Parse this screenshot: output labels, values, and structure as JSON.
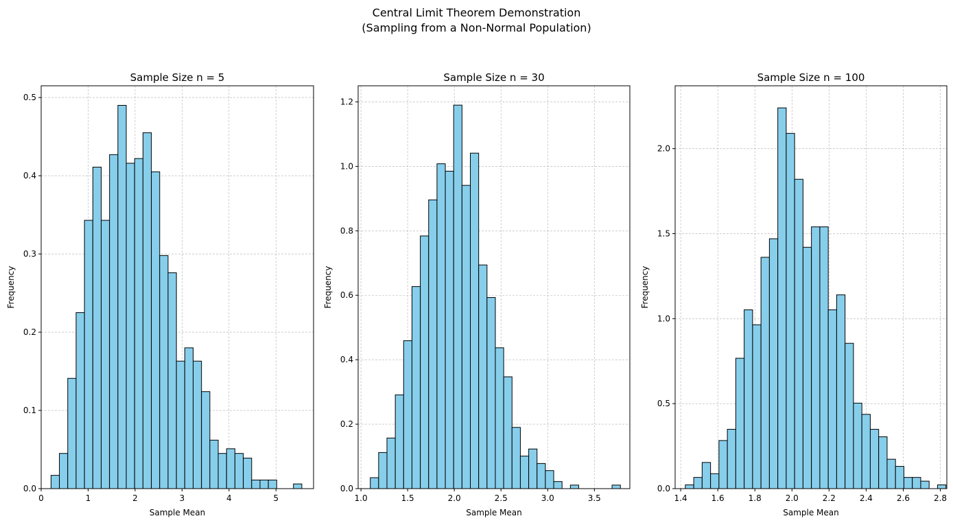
{
  "figure": {
    "title_line1": "Central Limit Theorem Demonstration",
    "title_line2": "(Sampling from a Non-Normal Population)"
  },
  "colors": {
    "bar_fill": "#87CEEB",
    "bar_edge": "#000000",
    "grid": "#b0b0b0"
  },
  "chart_data": [
    {
      "type": "bar",
      "title": "Sample Size n = 5",
      "xlabel": "Sample Mean",
      "ylabel": "Frequency",
      "grid": true,
      "xlim": [
        0.0,
        5.8
      ],
      "ylim": [
        0,
        0.515
      ],
      "xticks": [
        0,
        1,
        2,
        3,
        4,
        5
      ],
      "xtick_labels": [
        "0",
        "1",
        "2",
        "3",
        "4",
        "5"
      ],
      "yticks": [
        0.0,
        0.1,
        0.2,
        0.3,
        0.4,
        0.5
      ],
      "ytick_labels": [
        "0.0",
        "0.1",
        "0.2",
        "0.3",
        "0.4",
        "0.5"
      ],
      "bin_start": 0.21,
      "bin_width": 0.178,
      "values": [
        0.017,
        0.045,
        0.141,
        0.225,
        0.343,
        0.411,
        0.343,
        0.427,
        0.49,
        0.416,
        0.422,
        0.455,
        0.405,
        0.298,
        0.276,
        0.163,
        0.18,
        0.163,
        0.124,
        0.062,
        0.045,
        0.051,
        0.045,
        0.039,
        0.011,
        0.011,
        0.011,
        0.0,
        0.0,
        0.006
      ]
    },
    {
      "type": "bar",
      "title": "Sample Size n = 30",
      "xlabel": "Sample Mean",
      "ylabel": "Frequency",
      "grid": true,
      "xlim": [
        0.97,
        3.88
      ],
      "ylim": [
        0,
        1.25
      ],
      "xticks": [
        1.0,
        1.5,
        2.0,
        2.5,
        3.0,
        3.5
      ],
      "xtick_labels": [
        "1.0",
        "1.5",
        "2.0",
        "2.5",
        "3.0",
        "3.5"
      ],
      "yticks": [
        0.0,
        0.2,
        0.4,
        0.6,
        0.8,
        1.0,
        1.2
      ],
      "ytick_labels": [
        "0.0",
        "0.2",
        "0.4",
        "0.6",
        "0.8",
        "1.0",
        "1.2"
      ],
      "bin_start": 1.1,
      "bin_width": 0.0893,
      "values": [
        0.034,
        0.112,
        0.157,
        0.291,
        0.459,
        0.627,
        0.784,
        0.896,
        1.008,
        0.985,
        1.19,
        0.941,
        1.041,
        0.694,
        0.593,
        0.437,
        0.347,
        0.19,
        0.101,
        0.123,
        0.078,
        0.056,
        0.022,
        0.0,
        0.011,
        0.0,
        0.0,
        0.0,
        0.0,
        0.011
      ]
    },
    {
      "type": "bar",
      "title": "Sample Size n = 100",
      "xlabel": "Sample Mean",
      "ylabel": "Frequency",
      "grid": true,
      "xlim": [
        1.37,
        2.835
      ],
      "ylim": [
        0,
        2.37
      ],
      "xticks": [
        1.4,
        1.6,
        1.8,
        2.0,
        2.2,
        2.4,
        2.6,
        2.8
      ],
      "xtick_labels": [
        "1.4",
        "1.6",
        "1.8",
        "2.0",
        "2.2",
        "2.4",
        "2.6",
        "2.8"
      ],
      "yticks": [
        0.0,
        0.5,
        1.0,
        1.5,
        2.0
      ],
      "ytick_labels": [
        "0.0",
        "0.5",
        "1.0",
        "1.5",
        "2.0"
      ],
      "bin_start": 1.425,
      "bin_width": 0.04533,
      "values": [
        0.022,
        0.066,
        0.154,
        0.088,
        0.283,
        0.349,
        0.767,
        1.052,
        0.964,
        1.361,
        1.47,
        2.24,
        2.09,
        1.82,
        1.42,
        1.54,
        1.54,
        1.052,
        1.14,
        0.855,
        0.503,
        0.437,
        0.349,
        0.305,
        0.173,
        0.131,
        0.066,
        0.066,
        0.044,
        0.0,
        0.022
      ]
    }
  ]
}
